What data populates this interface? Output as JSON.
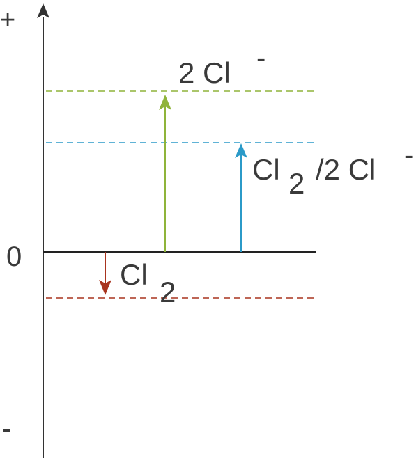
{
  "axis": {
    "plus_label": "+",
    "zero_label": "0",
    "minus_label": "-",
    "color": "#333333"
  },
  "levels": {
    "chloride": {
      "name": "2 Cl",
      "charge": "-",
      "color": "#8fb43a"
    },
    "couple": {
      "name_a": "Cl",
      "subscript": "2",
      "name_b": "/2 Cl",
      "charge": "-",
      "color": "#2b9ac8"
    },
    "chlorine": {
      "name": "Cl",
      "subscript": "2",
      "color": "#a8341f"
    }
  }
}
